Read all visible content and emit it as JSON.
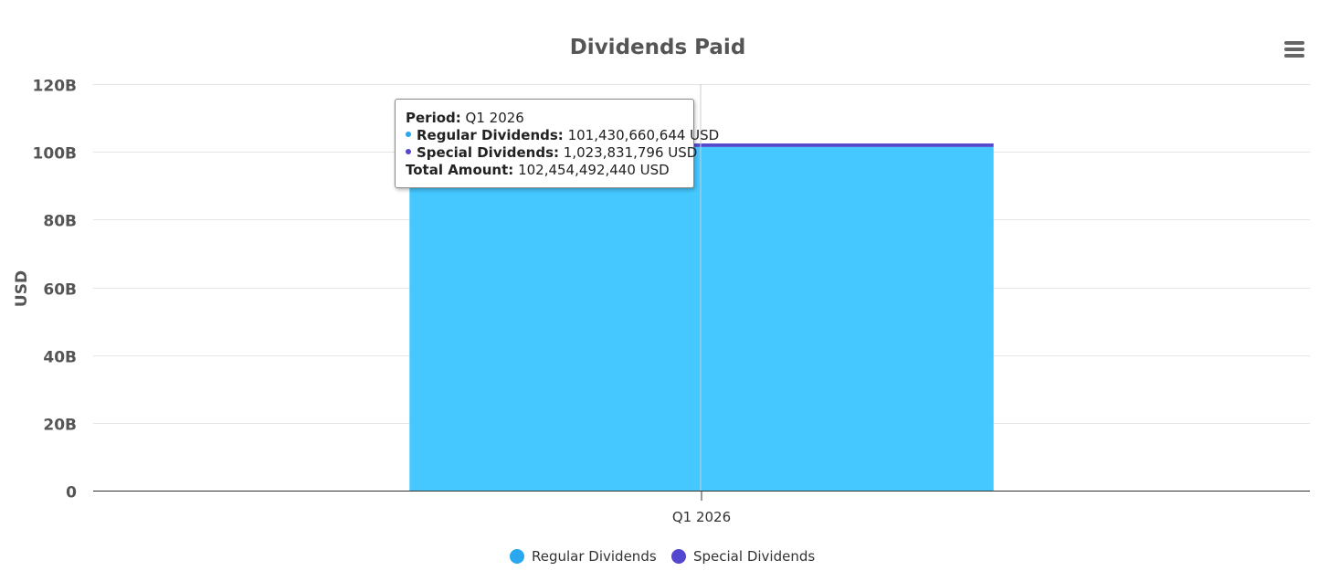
{
  "chart_data": {
    "type": "bar",
    "stacked": true,
    "title": "Dividends Paid",
    "ylabel": "USD",
    "xlabel": "",
    "categories": [
      "Q1 2026"
    ],
    "series": [
      {
        "name": "Regular Dividends",
        "values": [
          101430660644
        ],
        "color": "#44C8FF"
      },
      {
        "name": "Special Dividends",
        "values": [
          1023831796
        ],
        "color": "#5447CF"
      }
    ],
    "ylim": [
      0,
      120000000000
    ],
    "y_ticks": [
      0,
      20000000000,
      40000000000,
      60000000000,
      80000000000,
      100000000000,
      120000000000
    ],
    "y_tick_labels": [
      "0",
      "20B",
      "40B",
      "60B",
      "80B",
      "100B",
      "120B"
    ],
    "grid": true,
    "legend_position": "bottom-center"
  },
  "tooltip": {
    "period_label": "Period:",
    "period_value": "Q1 2026",
    "regular_label": "Regular Dividends:",
    "regular_value": "101,430,660,644 USD",
    "special_label": "Special Dividends:",
    "special_value": "1,023,831,796 USD",
    "total_label": "Total Amount:",
    "total_value": "102,454,492,440 USD"
  },
  "menu": {
    "icon": "hamburger-menu-icon"
  },
  "colors": {
    "axis_text": "#666666",
    "grid": "#e6e6e6",
    "axis_line": "#333333"
  }
}
